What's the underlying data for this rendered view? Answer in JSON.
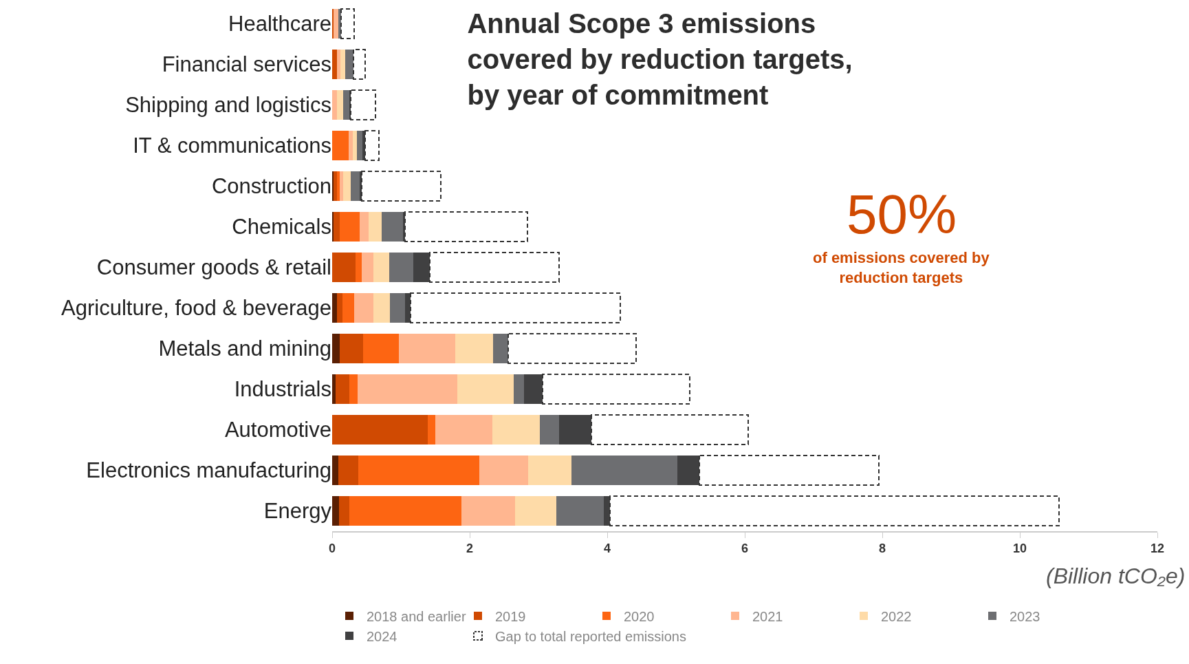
{
  "chart_data": {
    "type": "bar",
    "orientation": "horizontal",
    "stacked": true,
    "title": "Annual Scope 3 emissions covered by reduction targets, by year of commitment",
    "xlabel": "(Billion tCO₂e)",
    "categories": [
      "Healthcare",
      "Financial services",
      "Shipping and logistics",
      "IT & communications",
      "Construction",
      "Chemicals",
      "Consumer goods & retail",
      "Agriculture, food & beverage",
      "Metals and mining",
      "Industrials",
      "Automotive",
      "Electronics manufacturing",
      "Energy"
    ],
    "series": [
      {
        "name": "2018 and earlier",
        "color": "#5a1f03",
        "values": [
          0,
          0,
          0,
          0,
          0.02,
          0.02,
          0,
          0.07,
          0.11,
          0.05,
          0,
          0.09,
          0.1
        ]
      },
      {
        "name": "2019",
        "color": "#d04a02",
        "values": [
          0.02,
          0.07,
          0,
          0,
          0.05,
          0.09,
          0.34,
          0.08,
          0.34,
          0.2,
          1.39,
          0.29,
          0.15
        ]
      },
      {
        "name": "2020",
        "color": "#fd6512",
        "values": [
          0,
          0,
          0,
          0.24,
          0.04,
          0.29,
          0.09,
          0.17,
          0.52,
          0.12,
          0.11,
          1.76,
          1.63
        ]
      },
      {
        "name": "2021",
        "color": "#ffb690",
        "values": [
          0.07,
          0.05,
          0.07,
          0.06,
          0.05,
          0.13,
          0.17,
          0.28,
          0.82,
          1.45,
          0.83,
          0.71,
          0.78
        ]
      },
      {
        "name": "2022",
        "color": "#fedba8",
        "values": [
          0,
          0.07,
          0.09,
          0.06,
          0.11,
          0.19,
          0.23,
          0.24,
          0.55,
          0.82,
          0.69,
          0.63,
          0.6
        ]
      },
      {
        "name": "2023",
        "color": "#6d6e71",
        "values": [
          0.04,
          0.12,
          0.09,
          0.08,
          0.13,
          0.31,
          0.35,
          0.22,
          0.22,
          0.15,
          0.28,
          1.54,
          0.69
        ]
      },
      {
        "name": "2024",
        "color": "#404041",
        "values": [
          0,
          null,
          0.02,
          0.04,
          0.03,
          0.03,
          0.24,
          0.08,
          0,
          0.27,
          0.47,
          0.32,
          0.09
        ]
      },
      {
        "name": "Gap to total reported emissions",
        "color": "#ffffff",
        "line_style": "dashed",
        "values": [
          0.19,
          0.17,
          0.36,
          0.2,
          1.15,
          1.78,
          1.88,
          3.05,
          1.86,
          2.14,
          2.28,
          2.61,
          6.53
        ]
      }
    ],
    "xlim": [
      0,
      12
    ],
    "xticks": [
      0,
      2,
      4,
      6,
      8,
      10,
      12
    ],
    "grid": false,
    "legend": "bottom",
    "annotations": [
      "50%",
      "of emissions covered by reduction targets"
    ]
  }
}
